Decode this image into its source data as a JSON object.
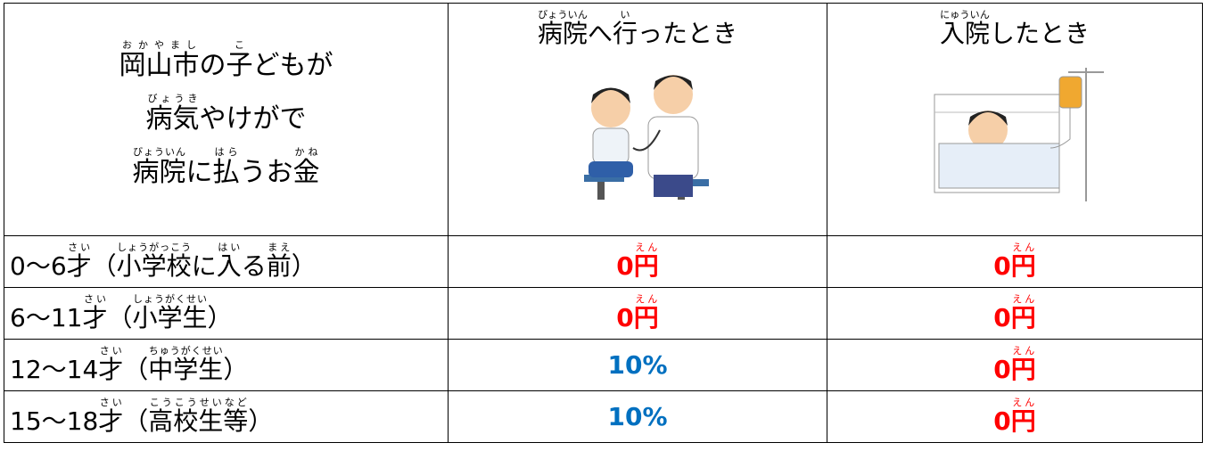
{
  "table": {
    "header": [
      {
        "lines": [
          [
            {
              "t": "岡山市",
              "r": "おかやまし"
            },
            {
              "t": "の"
            },
            {
              "t": "子",
              "r": "こ"
            },
            {
              "t": "どもが"
            }
          ],
          [
            {
              "t": "病気",
              "r": "びょうき"
            },
            {
              "t": "やけがで"
            }
          ],
          [
            {
              "t": "病院",
              "r": "びょういん"
            },
            {
              "t": "に"
            },
            {
              "t": "払",
              "r": "はら"
            },
            {
              "t": "うお"
            },
            {
              "t": "金",
              "r": "かね"
            }
          ]
        ]
      },
      {
        "lines": [
          [
            {
              "t": "病院",
              "r": "びょういん"
            },
            {
              "t": "へ"
            },
            {
              "t": "行",
              "r": "い"
            },
            {
              "t": "ったとき"
            }
          ]
        ]
      },
      {
        "lines": [
          [
            {
              "t": "入院",
              "r": "にゅういん"
            },
            {
              "t": "したとき"
            }
          ]
        ]
      }
    ],
    "rows": [
      {
        "label": [
          {
            "t": "0～6"
          },
          {
            "t": "才",
            "r": "さい"
          },
          {
            "t": "（"
          },
          {
            "t": "小学校",
            "r": "しょうがっこう"
          },
          {
            "t": "に"
          },
          {
            "t": "入",
            "r": "はい"
          },
          {
            "t": "る"
          },
          {
            "t": "前",
            "r": "まえ"
          },
          {
            "t": "）"
          }
        ],
        "cells": [
          {
            "color": "#ff0000",
            "text": [
              {
                "t": "0"
              },
              {
                "t": "円",
                "r": "えん"
              }
            ]
          },
          {
            "color": "#ff0000",
            "text": [
              {
                "t": "0"
              },
              {
                "t": "円",
                "r": "えん"
              }
            ]
          }
        ]
      },
      {
        "label": [
          {
            "t": "6～11"
          },
          {
            "t": "才",
            "r": "さい"
          },
          {
            "t": "（"
          },
          {
            "t": "小学生",
            "r": "しょうがくせい"
          },
          {
            "t": "）"
          }
        ],
        "cells": [
          {
            "color": "#ff0000",
            "text": [
              {
                "t": "0"
              },
              {
                "t": "円",
                "r": "えん"
              }
            ]
          },
          {
            "color": "#ff0000",
            "text": [
              {
                "t": "0"
              },
              {
                "t": "円",
                "r": "えん"
              }
            ]
          }
        ]
      },
      {
        "label": [
          {
            "t": "12～14"
          },
          {
            "t": "才",
            "r": "さい"
          },
          {
            "t": "（"
          },
          {
            "t": "中学生",
            "r": "ちゅうがくせい"
          },
          {
            "t": "）"
          }
        ],
        "cells": [
          {
            "color": "#0070c0",
            "text": [
              {
                "t": "10%"
              }
            ]
          },
          {
            "color": "#ff0000",
            "text": [
              {
                "t": "0"
              },
              {
                "t": "円",
                "r": "えん"
              }
            ]
          }
        ]
      },
      {
        "label": [
          {
            "t": "15～18"
          },
          {
            "t": "才",
            "r": "さい"
          },
          {
            "t": "（"
          },
          {
            "t": "高校生等",
            "r": "こうこうせいなど"
          },
          {
            "t": "）"
          }
        ],
        "cells": [
          {
            "color": "#0070c0",
            "text": [
              {
                "t": "10%"
              }
            ]
          },
          {
            "color": "#ff0000",
            "text": [
              {
                "t": "0"
              },
              {
                "t": "円",
                "r": "えん"
              }
            ]
          }
        ]
      }
    ]
  }
}
